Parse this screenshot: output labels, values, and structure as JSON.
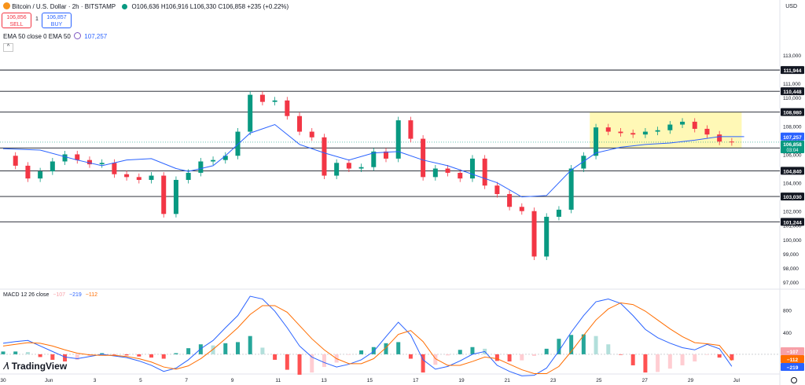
{
  "header": {
    "title": "Bitcoin / U.S. Dollar · 2h · BITSTAMP",
    "ohlc": "O106,636  H106,916  L106,330  C106,858  +235 (+0.22%)",
    "sell_price": "106,856",
    "sell_label": "SELL",
    "spread": "1",
    "buy_price": "106,857",
    "buy_label": "BUY",
    "ema_label": "EMA 50 close 0 EMA 50",
    "ema_value": "107,257",
    "currency": "USD",
    "macd_label": "MACD 12 26 close",
    "macd_values": [
      "−107",
      "−219",
      "−112"
    ],
    "brand": "TradingView"
  },
  "chart_data": {
    "type": "line",
    "symbol": "BTCUSD",
    "timeframe": "2h",
    "x_labels": [
      "30",
      "Jun",
      "3",
      "5",
      "7",
      "9",
      "11",
      "13",
      "15",
      "17",
      "19",
      "21",
      "23",
      "25",
      "27",
      "29",
      "Jul",
      "3"
    ],
    "ylim": [
      96500,
      114000
    ],
    "y_ticks": [
      "113,000",
      "112,000",
      "111,000",
      "110,000",
      "109,000",
      "108,000",
      "107,000",
      "106,000",
      "105,000",
      "104,000",
      "103,000",
      "102,000",
      "101,000",
      "100,000",
      "99,000",
      "98,000",
      "97,000"
    ],
    "horizontal_levels": [
      {
        "value": 111944,
        "label": "111,944"
      },
      {
        "value": 110448,
        "label": "110,448"
      },
      {
        "value": 108980,
        "label": "108,980"
      },
      {
        "value": 106450,
        "label": "106,450"
      },
      {
        "value": 104840,
        "label": "104,840"
      },
      {
        "value": 103030,
        "label": "103,030"
      },
      {
        "value": 101244,
        "label": "101,244"
      }
    ],
    "range_box": {
      "from": 108980,
      "to": 106450,
      "start_label": "24",
      "end_label": "1",
      "color": "#fff59d"
    },
    "price_tag": {
      "value": 106858,
      "label": "106,858",
      "countdown": "03:04"
    },
    "ema_tag": {
      "value": 107257,
      "label": "107,257"
    },
    "series": [
      {
        "name": "EMA 50",
        "color": "#2962ff",
        "points": [
          [
            0,
            106400
          ],
          [
            3,
            106300
          ],
          [
            6,
            105600
          ],
          [
            8,
            105200
          ],
          [
            10,
            105600
          ],
          [
            12,
            105700
          ],
          [
            14,
            105000
          ],
          [
            15,
            104800
          ],
          [
            17,
            105200
          ],
          [
            18,
            105900
          ],
          [
            20,
            107500
          ],
          [
            22,
            108100
          ],
          [
            24,
            106700
          ],
          [
            26,
            106100
          ],
          [
            28,
            105600
          ],
          [
            30,
            106100
          ],
          [
            32,
            106200
          ],
          [
            34,
            105600
          ],
          [
            36,
            105200
          ],
          [
            38,
            104600
          ],
          [
            40,
            104000
          ],
          [
            42,
            103000
          ],
          [
            44,
            103100
          ],
          [
            46,
            104900
          ],
          [
            48,
            106100
          ],
          [
            50,
            106500
          ],
          [
            52,
            106700
          ],
          [
            54,
            106800
          ],
          [
            56,
            107000
          ],
          [
            58,
            107250
          ],
          [
            60,
            107250
          ]
        ]
      },
      {
        "name": "Close",
        "color": "#26a69a",
        "points": [
          [
            0,
            105900
          ],
          [
            1,
            105200
          ],
          [
            2,
            104300
          ],
          [
            3,
            104800
          ],
          [
            4,
            105500
          ],
          [
            5,
            106000
          ],
          [
            6,
            105600
          ],
          [
            7,
            105300
          ],
          [
            8,
            105400
          ],
          [
            9,
            104600
          ],
          [
            10,
            104400
          ],
          [
            11,
            104200
          ],
          [
            12,
            104500
          ],
          [
            13,
            101800
          ],
          [
            14,
            104200
          ],
          [
            15,
            104700
          ],
          [
            16,
            105500
          ],
          [
            17,
            105600
          ],
          [
            18,
            105900
          ],
          [
            19,
            107600
          ],
          [
            20,
            110200
          ],
          [
            21,
            109700
          ],
          [
            22,
            109800
          ],
          [
            23,
            108700
          ],
          [
            24,
            107600
          ],
          [
            25,
            107200
          ],
          [
            26,
            104500
          ],
          [
            27,
            105400
          ],
          [
            28,
            105000
          ],
          [
            29,
            105100
          ],
          [
            30,
            106200
          ],
          [
            31,
            105700
          ],
          [
            32,
            108400
          ],
          [
            33,
            107100
          ],
          [
            34,
            104400
          ],
          [
            35,
            105000
          ],
          [
            36,
            104700
          ],
          [
            37,
            104300
          ],
          [
            38,
            105700
          ],
          [
            39,
            103800
          ],
          [
            40,
            103200
          ],
          [
            41,
            102300
          ],
          [
            42,
            102000
          ],
          [
            43,
            98800
          ],
          [
            44,
            101600
          ],
          [
            45,
            102100
          ],
          [
            46,
            105000
          ],
          [
            47,
            105900
          ],
          [
            48,
            107900
          ],
          [
            49,
            107600
          ],
          [
            50,
            107500
          ],
          [
            51,
            107400
          ],
          [
            52,
            107600
          ],
          [
            53,
            107700
          ],
          [
            54,
            108100
          ],
          [
            55,
            108300
          ],
          [
            56,
            107800
          ],
          [
            57,
            107400
          ],
          [
            58,
            106900
          ],
          [
            59,
            106858
          ]
        ]
      }
    ],
    "macd": {
      "ylim": [
        -300,
        1150
      ],
      "y_ticks": [
        "800",
        "400",
        "0"
      ],
      "tags": [
        {
          "value": -107,
          "label": "−107",
          "color": "#f7a0a8"
        },
        {
          "value": -112,
          "label": "−112",
          "color": "#ff6d00"
        },
        {
          "value": -219,
          "label": "−219",
          "color": "#2962ff"
        }
      ],
      "series": [
        {
          "name": "MACD",
          "color": "#2962ff",
          "values": [
            200,
            230,
            250,
            150,
            50,
            -50,
            -80,
            -40,
            0,
            -30,
            -60,
            -120,
            -200,
            -310,
            -250,
            -100,
            100,
            250,
            480,
            700,
            1050,
            1000,
            780,
            480,
            150,
            -50,
            -150,
            -230,
            -180,
            -100,
            50,
            320,
            580,
            350,
            -100,
            -270,
            -220,
            -120,
            0,
            50,
            -200,
            -310,
            -390,
            -380,
            -250,
            60,
            400,
            700,
            950,
            1000,
            920,
            700,
            450,
            300,
            200,
            120,
            80,
            180,
            100,
            -219
          ]
        },
        {
          "name": "Signal",
          "color": "#ff6d00",
          "values": [
            150,
            180,
            210,
            200,
            150,
            80,
            20,
            -10,
            -20,
            -20,
            -40,
            -80,
            -140,
            -230,
            -270,
            -210,
            -80,
            90,
            280,
            480,
            720,
            880,
            880,
            760,
            520,
            280,
            80,
            -80,
            -170,
            -170,
            -80,
            120,
            360,
            430,
            230,
            -80,
            -200,
            -200,
            -130,
            -50,
            -80,
            -180,
            -280,
            -350,
            -350,
            -220,
            50,
            340,
            620,
            820,
            930,
            900,
            780,
            620,
            460,
            320,
            210,
            190,
            160,
            -112
          ]
        },
        {
          "name": "Histogram",
          "color": "#26a69a",
          "values": [
            50,
            50,
            40,
            -50,
            -100,
            -130,
            -100,
            -30,
            20,
            -10,
            -20,
            -40,
            -60,
            -80,
            20,
            110,
            180,
            160,
            200,
            220,
            330,
            120,
            -100,
            -280,
            -370,
            -330,
            -230,
            -150,
            -10,
            70,
            130,
            200,
            220,
            -80,
            -330,
            -190,
            -20,
            80,
            130,
            100,
            -120,
            -130,
            -110,
            -30,
            100,
            280,
            350,
            360,
            330,
            180,
            -10,
            -200,
            -330,
            -320,
            -260,
            -200,
            -130,
            -10,
            -60,
            -107
          ]
        }
      ]
    }
  }
}
